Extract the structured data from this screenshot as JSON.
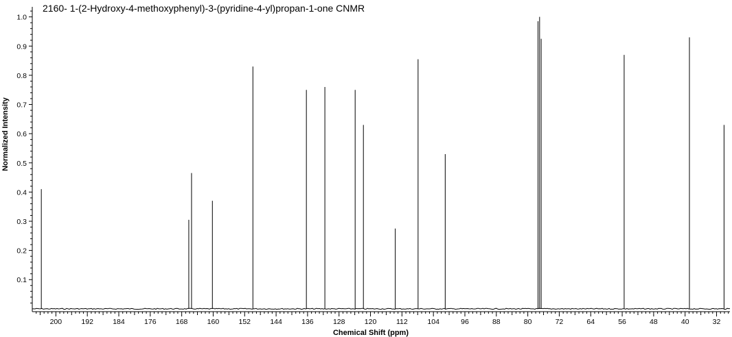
{
  "chart_data": {
    "type": "line",
    "title": "2160- 1-(2-Hydroxy-4-methoxyphenyl)-3-(pyridine-4-yl)propan-1-one CNMR",
    "xlabel": "Chemical Shift (ppm)",
    "ylabel": "Normalized Intensity",
    "x_reversed": true,
    "xlim": [
      206,
      28.6
    ],
    "ylim": [
      -0.005,
      1.025
    ],
    "x_ticks": [
      200,
      192,
      184,
      176,
      168,
      160,
      152,
      144,
      136,
      128,
      120,
      112,
      104,
      96,
      88,
      80,
      72,
      64,
      56,
      48,
      40,
      32
    ],
    "y_ticks": [
      0.1,
      0.2,
      0.3,
      0.4,
      0.5,
      0.6,
      0.7,
      0.8,
      0.9,
      1.0
    ],
    "grid": false,
    "peaks": [
      {
        "shift": 203.7,
        "intensity": 0.41
      },
      {
        "shift": 166.2,
        "intensity": 0.305
      },
      {
        "shift": 165.5,
        "intensity": 0.465
      },
      {
        "shift": 160.2,
        "intensity": 0.37
      },
      {
        "shift": 149.9,
        "intensity": 0.83
      },
      {
        "shift": 136.3,
        "intensity": 0.75
      },
      {
        "shift": 131.6,
        "intensity": 0.76
      },
      {
        "shift": 123.9,
        "intensity": 0.75
      },
      {
        "shift": 121.8,
        "intensity": 0.63
      },
      {
        "shift": 113.7,
        "intensity": 0.275
      },
      {
        "shift": 107.9,
        "intensity": 0.855
      },
      {
        "shift": 101.0,
        "intensity": 0.53
      },
      {
        "shift": 77.4,
        "intensity": 0.985
      },
      {
        "shift": 77.0,
        "intensity": 1.0
      },
      {
        "shift": 76.6,
        "intensity": 0.925
      },
      {
        "shift": 55.5,
        "intensity": 0.87
      },
      {
        "shift": 38.9,
        "intensity": 0.93
      },
      {
        "shift": 30.1,
        "intensity": 0.63
      }
    ]
  }
}
